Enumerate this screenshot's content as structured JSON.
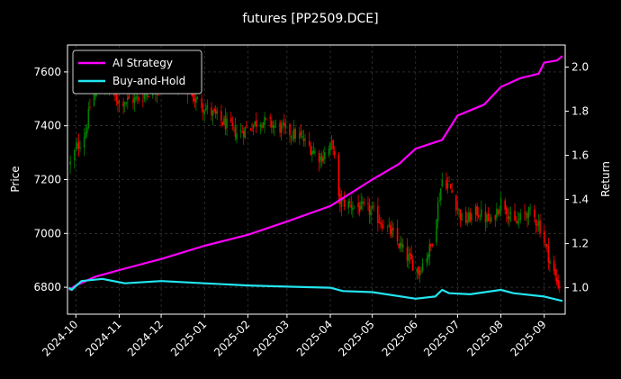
{
  "chart_data": {
    "type": "candlestick+line",
    "title": "futures [PP2509.DCE]",
    "ylabel_left": "Price",
    "ylabel_right": "Return",
    "xlim": [
      "2024-09-25",
      "2025-09-16"
    ],
    "ylim_left": [
      6700,
      7700
    ],
    "ylim_right": [
      0.88,
      2.1
    ],
    "x_ticks": [
      "2024-10",
      "2024-11",
      "2024-12",
      "2025-01",
      "2025-02",
      "2025-03",
      "2025-04",
      "2025-05",
      "2025-06",
      "2025-07",
      "2025-08",
      "2025-09"
    ],
    "y_ticks_left": [
      6800,
      7000,
      7200,
      7400,
      7600
    ],
    "y_ticks_right": [
      "1.0",
      "1.2",
      "1.4",
      "1.6",
      "1.8",
      "2.0"
    ],
    "grid": true,
    "legend_position": "top-left",
    "colors": {
      "up": "#008000",
      "down": "#ff0000",
      "background": "#000000",
      "grid": "#444444"
    },
    "price_path": [
      {
        "date": "2024-09-27",
        "close": 7260
      },
      {
        "date": "2024-09-30",
        "close": 7300
      },
      {
        "date": "2024-10-08",
        "close": 7380
      },
      {
        "date": "2024-10-12",
        "close": 7500
      },
      {
        "date": "2024-10-20",
        "close": 7560
      },
      {
        "date": "2024-11-01",
        "close": 7490
      },
      {
        "date": "2024-11-15",
        "close": 7500
      },
      {
        "date": "2024-11-25",
        "close": 7540
      },
      {
        "date": "2024-12-10",
        "close": 7580
      },
      {
        "date": "2024-12-25",
        "close": 7500
      },
      {
        "date": "2025-01-10",
        "close": 7430
      },
      {
        "date": "2025-01-25",
        "close": 7370
      },
      {
        "date": "2025-02-10",
        "close": 7420
      },
      {
        "date": "2025-02-25",
        "close": 7390
      },
      {
        "date": "2025-03-10",
        "close": 7360
      },
      {
        "date": "2025-03-25",
        "close": 7280
      },
      {
        "date": "2025-04-03",
        "close": 7330
      },
      {
        "date": "2025-04-07",
        "close": 7120
      },
      {
        "date": "2025-04-20",
        "close": 7100
      },
      {
        "date": "2025-05-01",
        "close": 7080
      },
      {
        "date": "2025-05-15",
        "close": 7000
      },
      {
        "date": "2025-05-25",
        "close": 6920
      },
      {
        "date": "2025-06-03",
        "close": 6860
      },
      {
        "date": "2025-06-12",
        "close": 6950
      },
      {
        "date": "2025-06-20",
        "close": 7200
      },
      {
        "date": "2025-06-25",
        "close": 7180
      },
      {
        "date": "2025-07-05",
        "close": 7040
      },
      {
        "date": "2025-07-15",
        "close": 7080
      },
      {
        "date": "2025-07-25",
        "close": 7040
      },
      {
        "date": "2025-08-02",
        "close": 7130
      },
      {
        "date": "2025-08-10",
        "close": 7030
      },
      {
        "date": "2025-08-20",
        "close": 7080
      },
      {
        "date": "2025-08-28",
        "close": 7040
      },
      {
        "date": "2025-09-05",
        "close": 6900
      },
      {
        "date": "2025-09-10",
        "close": 6820
      },
      {
        "date": "2025-09-14",
        "close": 6790
      }
    ],
    "series": [
      {
        "name": "AI Strategy",
        "color": "#ff00ff",
        "points": [
          {
            "date": "2024-09-26",
            "value": 0.99
          },
          {
            "date": "2024-10-01",
            "value": 1.01
          },
          {
            "date": "2024-10-15",
            "value": 1.05
          },
          {
            "date": "2024-11-01",
            "value": 1.08
          },
          {
            "date": "2024-12-01",
            "value": 1.13
          },
          {
            "date": "2025-01-01",
            "value": 1.19
          },
          {
            "date": "2025-02-01",
            "value": 1.24
          },
          {
            "date": "2025-03-01",
            "value": 1.3
          },
          {
            "date": "2025-04-01",
            "value": 1.37
          },
          {
            "date": "2025-05-01",
            "value": 1.49
          },
          {
            "date": "2025-05-20",
            "value": 1.56
          },
          {
            "date": "2025-06-01",
            "value": 1.63
          },
          {
            "date": "2025-06-20",
            "value": 1.67
          },
          {
            "date": "2025-07-01",
            "value": 1.78
          },
          {
            "date": "2025-07-20",
            "value": 1.83
          },
          {
            "date": "2025-08-01",
            "value": 1.91
          },
          {
            "date": "2025-08-15",
            "value": 1.95
          },
          {
            "date": "2025-08-28",
            "value": 1.97
          },
          {
            "date": "2025-09-01",
            "value": 2.02
          },
          {
            "date": "2025-09-10",
            "value": 2.03
          },
          {
            "date": "2025-09-14",
            "value": 2.05
          }
        ]
      },
      {
        "name": "Buy-and-Hold",
        "color": "#22e5f0",
        "points": [
          {
            "date": "2024-09-26",
            "value": 1.0
          },
          {
            "date": "2024-09-28",
            "value": 0.99
          },
          {
            "date": "2024-10-05",
            "value": 1.03
          },
          {
            "date": "2024-10-20",
            "value": 1.04
          },
          {
            "date": "2024-11-05",
            "value": 1.02
          },
          {
            "date": "2024-12-01",
            "value": 1.03
          },
          {
            "date": "2025-01-01",
            "value": 1.02
          },
          {
            "date": "2025-02-01",
            "value": 1.01
          },
          {
            "date": "2025-03-01",
            "value": 1.005
          },
          {
            "date": "2025-04-01",
            "value": 1.0
          },
          {
            "date": "2025-04-10",
            "value": 0.985
          },
          {
            "date": "2025-05-01",
            "value": 0.98
          },
          {
            "date": "2025-06-01",
            "value": 0.95
          },
          {
            "date": "2025-06-15",
            "value": 0.96
          },
          {
            "date": "2025-06-20",
            "value": 0.99
          },
          {
            "date": "2025-06-25",
            "value": 0.975
          },
          {
            "date": "2025-07-10",
            "value": 0.97
          },
          {
            "date": "2025-08-01",
            "value": 0.99
          },
          {
            "date": "2025-08-10",
            "value": 0.975
          },
          {
            "date": "2025-09-01",
            "value": 0.96
          },
          {
            "date": "2025-09-14",
            "value": 0.94
          }
        ]
      }
    ]
  }
}
